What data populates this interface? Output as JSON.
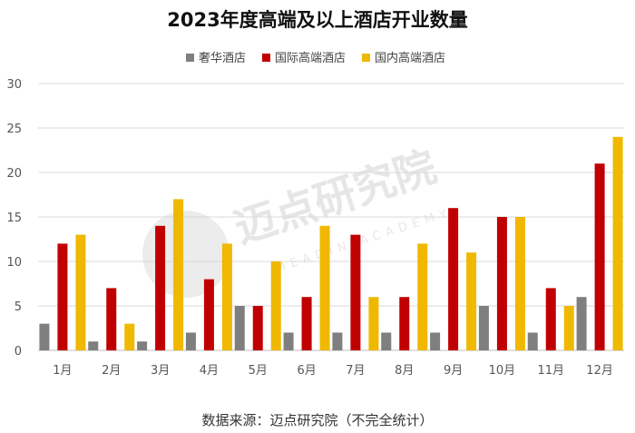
{
  "chart_data": {
    "type": "bar",
    "title": "2023年度高端及以上酒店开业数量",
    "categories": [
      "1月",
      "2月",
      "3月",
      "4月",
      "5月",
      "6月",
      "7月",
      "8月",
      "9月",
      "10月",
      "11月",
      "12月"
    ],
    "series": [
      {
        "name": "奢华酒店",
        "color": "#7f7f7f",
        "values": [
          3,
          1,
          1,
          2,
          5,
          2,
          2,
          2,
          2,
          5,
          2,
          6
        ]
      },
      {
        "name": "国际高端酒店",
        "color": "#c00000",
        "values": [
          12,
          7,
          14,
          8,
          5,
          6,
          13,
          6,
          16,
          15,
          7,
          21
        ]
      },
      {
        "name": "国内高端酒店",
        "color": "#f0b800",
        "values": [
          13,
          3,
          17,
          12,
          10,
          14,
          6,
          12,
          11,
          15,
          5,
          24
        ]
      }
    ],
    "ylim": [
      0,
      30
    ],
    "yticks": [
      0,
      5,
      10,
      15,
      20,
      25,
      30
    ],
    "grid": true,
    "legend_position": "top-center"
  },
  "watermark": {
    "text": "迈点研究院",
    "sub": "MEADIN ACADEMY"
  },
  "source_note": "数据来源：迈点研究院（不完全统计）"
}
